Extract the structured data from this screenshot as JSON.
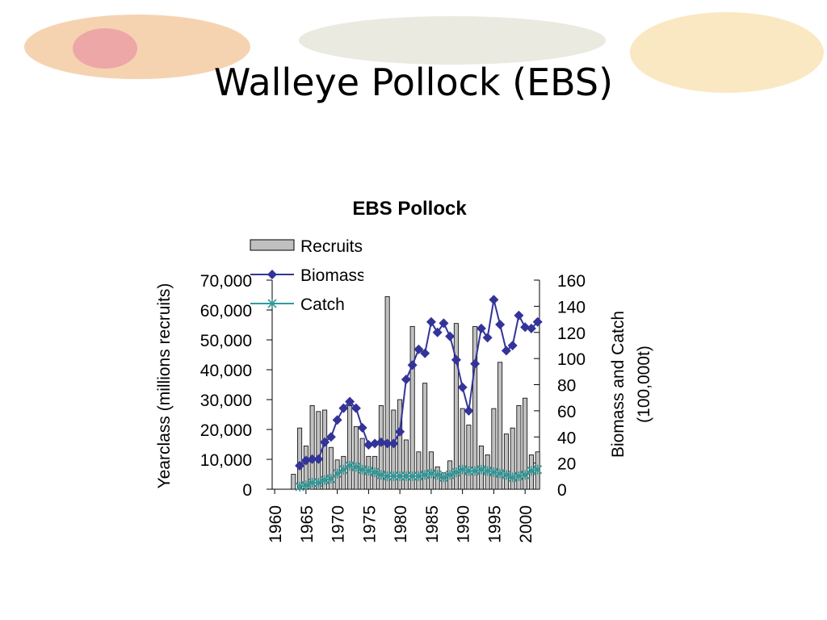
{
  "slide_title": "Walleye Pollock (EBS)",
  "chart_data": {
    "type": "bar-line",
    "title": "EBS Pollock",
    "y_label": "Yearclass (millions recruits)",
    "y2_label": [
      "Biomass and Catch",
      "(100,000t)"
    ],
    "x": [
      1963,
      1964,
      1965,
      1966,
      1967,
      1968,
      1969,
      1970,
      1971,
      1972,
      1973,
      1974,
      1975,
      1976,
      1977,
      1978,
      1979,
      1980,
      1981,
      1982,
      1983,
      1984,
      1985,
      1986,
      1987,
      1988,
      1989,
      1990,
      1991,
      1992,
      1993,
      1994,
      1995,
      1996,
      1997,
      1998,
      1999,
      2000,
      2001,
      2002
    ],
    "xlim": [
      1959.6,
      2002.3
    ],
    "xticks": [
      1960,
      1965,
      1970,
      1975,
      1980,
      1985,
      1990,
      1995,
      2000
    ],
    "ylim": [
      0,
      70000
    ],
    "yticks": [
      0,
      {
        "value": 10000,
        "label": "10,000"
      },
      {
        "value": 20000,
        "label": "20,000"
      },
      {
        "value": 30000,
        "label": "30,000"
      },
      {
        "value": 40000,
        "label": "40,000"
      },
      {
        "value": 50000,
        "label": "50,000"
      },
      {
        "value": 60000,
        "label": "60,000"
      },
      {
        "value": 70000,
        "label": "70,000"
      }
    ],
    "y2lim": [
      0,
      160
    ],
    "y2ticks": [
      0,
      20,
      40,
      60,
      80,
      100,
      120,
      140,
      160
    ],
    "series": [
      {
        "name": "Recruits",
        "kind": "bar",
        "color": "#c0c0c0",
        "values": [
          5000,
          20500,
          14500,
          28000,
          26000,
          26500,
          14000,
          9800,
          11000,
          28000,
          21000,
          17000,
          11000,
          11000,
          28000,
          64500,
          26500,
          30000,
          16500,
          54500,
          12500,
          35500,
          12500,
          7500,
          5500,
          9500,
          55500,
          27000,
          21500,
          54500,
          14500,
          11500,
          27000,
          42500,
          18500,
          20500,
          28000,
          30500,
          11500,
          12500
        ]
      },
      {
        "name": "Biomass",
        "kind": "line",
        "marker": "diamond",
        "axis": "y2",
        "color": "#333399",
        "values": [
          null,
          18,
          22,
          23,
          23,
          36,
          40,
          53,
          62,
          67,
          62,
          47,
          34,
          35,
          36,
          35,
          35,
          44,
          84,
          95,
          107,
          104,
          128,
          120,
          127,
          117,
          99,
          78,
          60,
          96,
          123,
          116,
          145,
          126,
          106,
          110,
          133,
          124,
          123,
          128
        ]
      },
      {
        "name": "Catch",
        "kind": "line",
        "marker": "star",
        "axis": "y2",
        "color": "#339999",
        "values": [
          null,
          2,
          3,
          5,
          5,
          7,
          8,
          12,
          15,
          18,
          17,
          15,
          14,
          13,
          11,
          10,
          10,
          10,
          10,
          10,
          10,
          11,
          12,
          11,
          9,
          11,
          13,
          15,
          14,
          14,
          15,
          14,
          13,
          12,
          11,
          9,
          10,
          11,
          14,
          15
        ]
      }
    ]
  }
}
